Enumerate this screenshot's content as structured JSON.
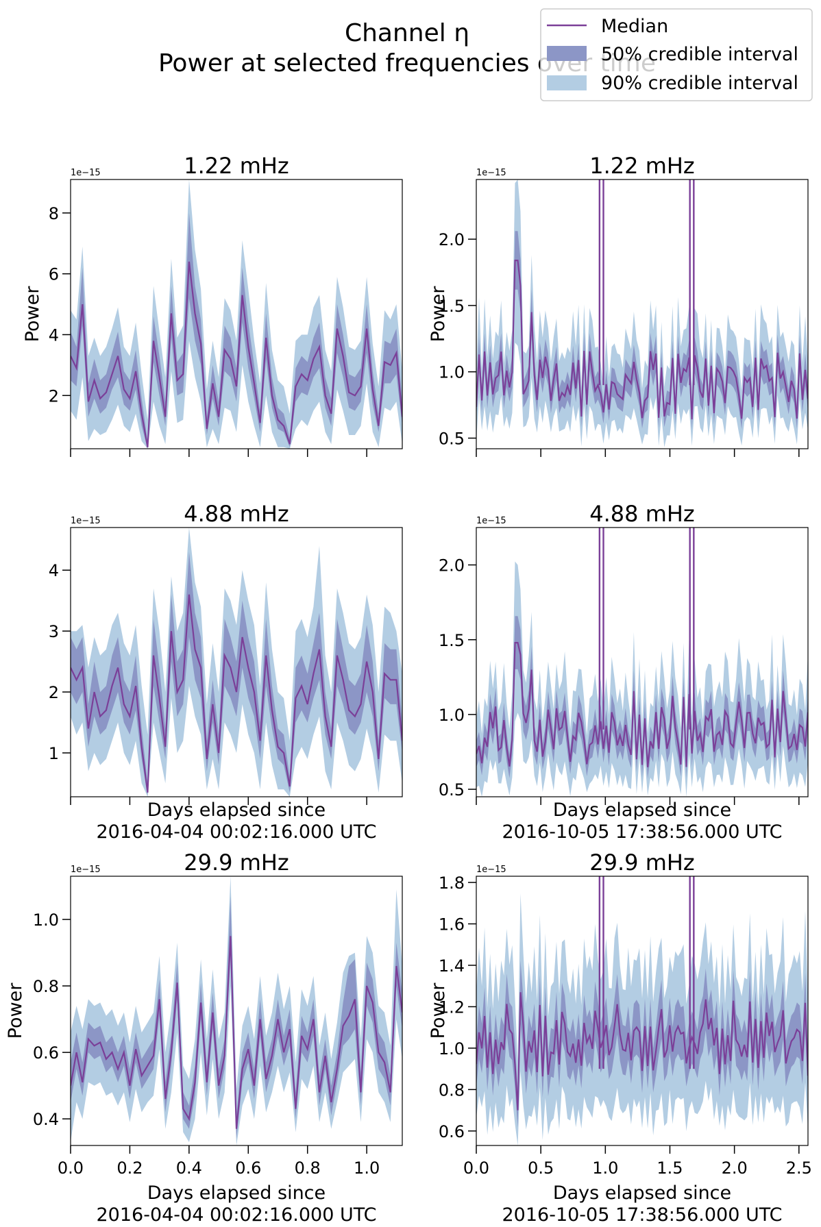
{
  "figure": {
    "title_line1": "Channel η",
    "title_line2": "Power at selected frequencies over time",
    "legend": {
      "placement": "top-right",
      "entries": [
        {
          "label": "Median",
          "kind": "line",
          "color": "#7b3f98"
        },
        {
          "label": "50% credible interval",
          "kind": "patch",
          "color": "#8c96c6"
        },
        {
          "label": "90% credible interval",
          "kind": "patch",
          "color": "#b3cde3"
        }
      ]
    }
  },
  "colors": {
    "median": "#7b3f98",
    "ci50": "#8c96c6",
    "ci90": "#b3cde3",
    "axis": "#000000"
  },
  "chart_data": [
    {
      "type": "line",
      "title": "1.22 mHz",
      "ylabel": "Power",
      "xlabel": "",
      "offset_text": "1e−15",
      "xlim": [
        0,
        1.12
      ],
      "ylim": [
        0.25,
        9.1
      ],
      "yticks": [
        2,
        4,
        6,
        8
      ],
      "ytick_labels": [
        "2",
        "4",
        "6",
        "8"
      ],
      "xticks": [
        0,
        0.2,
        0.4,
        0.6,
        0.8,
        1.0
      ],
      "xtick_labels": [],
      "x": [
        0.0,
        0.02,
        0.04,
        0.06,
        0.08,
        0.1,
        0.12,
        0.14,
        0.16,
        0.18,
        0.2,
        0.22,
        0.24,
        0.26,
        0.28,
        0.3,
        0.32,
        0.34,
        0.36,
        0.38,
        0.4,
        0.42,
        0.44,
        0.46,
        0.48,
        0.5,
        0.52,
        0.54,
        0.56,
        0.58,
        0.6,
        0.62,
        0.64,
        0.66,
        0.68,
        0.7,
        0.72,
        0.74,
        0.76,
        0.78,
        0.8,
        0.82,
        0.84,
        0.86,
        0.88,
        0.9,
        0.92,
        0.94,
        0.96,
        0.98,
        1.0,
        1.02,
        1.04,
        1.06,
        1.08,
        1.1,
        1.12
      ],
      "median": [
        3.3,
        2.9,
        5.0,
        1.8,
        2.5,
        1.9,
        2.1,
        2.7,
        3.3,
        2.2,
        1.9,
        2.8,
        1.4,
        0.3,
        3.8,
        2.6,
        1.3,
        4.7,
        2.5,
        2.7,
        6.4,
        4.7,
        3.7,
        0.9,
        2.4,
        1.3,
        3.5,
        3.2,
        2.3,
        5.3,
        3.6,
        2.4,
        1.1,
        3.9,
        2.0,
        1.2,
        1.0,
        0.4,
        2.3,
        2.7,
        2.5,
        3.2,
        3.6,
        2.0,
        1.4,
        4.2,
        3.3,
        2.1,
        2.0,
        2.3,
        4.2,
        2.2,
        1.0,
        3.1,
        3.0,
        3.4,
        1.3
      ],
      "ci50_low": [
        2.5,
        2.3,
        4.3,
        1.3,
        1.9,
        1.4,
        1.6,
        2.2,
        2.6,
        1.7,
        1.5,
        2.2,
        1.0,
        0.25,
        3.1,
        2.0,
        1.0,
        3.9,
        2.0,
        2.1,
        5.2,
        3.8,
        3.0,
        0.7,
        1.9,
        1.0,
        2.8,
        2.6,
        1.8,
        4.4,
        2.9,
        1.9,
        0.8,
        3.2,
        1.6,
        0.9,
        0.8,
        0.3,
        1.8,
        2.1,
        2.0,
        2.6,
        2.9,
        1.6,
        1.0,
        3.4,
        2.6,
        1.6,
        1.5,
        1.8,
        3.4,
        1.7,
        0.8,
        2.4,
        2.4,
        2.7,
        1.0
      ],
      "ci50_high": [
        4.1,
        3.6,
        6.2,
        2.4,
        3.2,
        2.5,
        2.7,
        3.4,
        4.1,
        2.8,
        2.5,
        3.5,
        1.9,
        0.5,
        4.6,
        3.3,
        1.8,
        5.6,
        3.1,
        3.4,
        8.0,
        5.6,
        4.5,
        1.3,
        3.0,
        1.8,
        4.3,
        3.9,
        2.9,
        6.2,
        4.4,
        3.0,
        1.5,
        4.7,
        2.6,
        1.6,
        1.4,
        0.6,
        2.9,
        3.3,
        3.1,
        3.9,
        4.4,
        2.6,
        1.9,
        5.0,
        4.0,
        2.7,
        2.6,
        2.9,
        5.0,
        2.8,
        1.4,
        3.8,
        3.7,
        4.2,
        1.8
      ],
      "ci90_low": [
        1.5,
        1.2,
        2.6,
        0.5,
        0.9,
        0.7,
        0.8,
        1.2,
        1.7,
        1.0,
        0.8,
        1.4,
        0.5,
        0.25,
        1.8,
        1.0,
        0.4,
        2.8,
        1.1,
        1.2,
        3.8,
        2.6,
        1.8,
        0.3,
        0.9,
        0.4,
        1.6,
        1.5,
        0.8,
        3.0,
        1.8,
        1.0,
        0.3,
        2.0,
        0.8,
        0.3,
        0.3,
        0.25,
        0.9,
        1.2,
        1.0,
        1.5,
        1.8,
        0.8,
        0.4,
        2.2,
        1.5,
        0.7,
        0.7,
        1.0,
        2.4,
        0.8,
        0.3,
        1.6,
        1.5,
        1.8,
        0.4
      ],
      "ci90_high": [
        4.8,
        4.5,
        6.9,
        3.3,
        3.9,
        3.3,
        3.6,
        4.2,
        4.9,
        3.6,
        3.3,
        4.4,
        2.7,
        1.2,
        5.6,
        4.1,
        2.6,
        6.5,
        3.9,
        4.3,
        9.1,
        6.8,
        5.5,
        2.2,
        3.8,
        2.6,
        5.2,
        4.8,
        3.8,
        7.1,
        5.5,
        3.8,
        2.4,
        5.7,
        3.5,
        2.5,
        2.3,
        1.4,
        3.8,
        4.0,
        4.0,
        4.9,
        5.3,
        3.5,
        2.8,
        5.9,
        4.9,
        3.6,
        3.5,
        3.8,
        5.9,
        3.7,
        2.3,
        4.8,
        4.5,
        5.0,
        2.8
      ]
    },
    {
      "type": "line",
      "title": "1.22 mHz",
      "ylabel": "Power",
      "xlabel": "",
      "offset_text": "1e−15",
      "xlim": [
        0,
        2.57
      ],
      "ylim": [
        0.42,
        2.45
      ],
      "yticks": [
        0.5,
        1.0,
        1.5,
        2.0
      ],
      "ytick_labels": [
        "0.5",
        "1.0",
        "1.5",
        "2.0"
      ],
      "xticks": [
        0,
        0.5,
        1.0,
        1.5,
        2.0,
        2.5
      ],
      "xtick_labels": [],
      "base_seed": 7,
      "base_level": 0.9,
      "noise": 0.2,
      "peaks": [
        {
          "x": 0.31,
          "v": 1.84
        },
        {
          "x": 0.35,
          "v": 1.65
        },
        {
          "x": 0.42,
          "v": 1.45
        }
      ],
      "spikes": [
        0.955,
        0.985,
        1.655,
        1.685
      ]
    },
    {
      "type": "line",
      "title": "4.88 mHz",
      "ylabel": "",
      "xlabel": "Days elapsed since\n2016-04-04 00:02:16.000 UTC",
      "offset_text": "1e−15",
      "xlim": [
        0,
        1.12
      ],
      "ylim": [
        0.28,
        4.7
      ],
      "yticks": [
        1,
        2,
        3,
        4
      ],
      "ytick_labels": [
        "1",
        "2",
        "3",
        "4"
      ],
      "xticks": [
        0,
        0.2,
        0.4,
        0.6,
        0.8,
        1.0
      ],
      "xtick_labels": [],
      "x": [
        0.0,
        0.02,
        0.04,
        0.06,
        0.08,
        0.1,
        0.12,
        0.14,
        0.16,
        0.18,
        0.2,
        0.22,
        0.24,
        0.26,
        0.28,
        0.3,
        0.32,
        0.34,
        0.36,
        0.38,
        0.4,
        0.42,
        0.44,
        0.46,
        0.48,
        0.5,
        0.52,
        0.54,
        0.56,
        0.58,
        0.6,
        0.62,
        0.64,
        0.66,
        0.68,
        0.7,
        0.72,
        0.74,
        0.76,
        0.78,
        0.8,
        0.82,
        0.84,
        0.86,
        0.88,
        0.9,
        0.92,
        0.94,
        0.96,
        0.98,
        1.0,
        1.02,
        1.04,
        1.06,
        1.08,
        1.1,
        1.12
      ],
      "median": [
        2.4,
        2.2,
        2.4,
        1.4,
        2.0,
        1.6,
        1.7,
        2.1,
        2.4,
        1.8,
        1.6,
        2.1,
        1.1,
        0.35,
        2.6,
        1.9,
        1.1,
        3.0,
        2.0,
        2.2,
        3.6,
        2.7,
        2.4,
        0.9,
        1.8,
        1.0,
        2.6,
        2.4,
        2.0,
        2.9,
        2.4,
        2.0,
        1.2,
        2.6,
        1.7,
        1.1,
        1.0,
        0.45,
        1.9,
        2.1,
        1.8,
        2.3,
        2.7,
        1.6,
        1.1,
        2.6,
        2.2,
        1.7,
        1.6,
        1.8,
        2.5,
        2.0,
        0.9,
        2.3,
        2.2,
        2.2,
        1.2
      ],
      "ci50_low": [
        2.0,
        1.8,
        2.0,
        1.1,
        1.6,
        1.3,
        1.4,
        1.7,
        2.0,
        1.5,
        1.3,
        1.7,
        0.9,
        0.3,
        2.1,
        1.5,
        0.9,
        2.5,
        1.6,
        1.8,
        2.9,
        2.2,
        1.9,
        0.7,
        1.5,
        0.8,
        2.1,
        1.9,
        1.6,
        2.4,
        1.9,
        1.6,
        0.9,
        2.1,
        1.4,
        0.9,
        0.8,
        0.35,
        1.5,
        1.7,
        1.5,
        1.9,
        2.2,
        1.3,
        0.9,
        2.1,
        1.8,
        1.4,
        1.3,
        1.5,
        2.0,
        1.6,
        0.7,
        1.9,
        1.8,
        1.8,
        1.0
      ],
      "ci50_high": [
        2.9,
        2.7,
        2.9,
        1.8,
        2.5,
        2.0,
        2.1,
        2.6,
        2.9,
        2.2,
        2.0,
        2.6,
        1.4,
        0.5,
        3.2,
        2.4,
        1.4,
        3.6,
        2.5,
        2.7,
        4.3,
        3.3,
        2.9,
        1.2,
        2.2,
        1.3,
        3.2,
        2.9,
        2.5,
        3.5,
        2.9,
        2.5,
        1.5,
        3.2,
        2.1,
        1.4,
        1.3,
        0.6,
        2.4,
        2.6,
        2.3,
        2.8,
        3.3,
        2.0,
        1.4,
        3.2,
        2.7,
        2.2,
        2.1,
        2.3,
        3.1,
        2.5,
        1.2,
        2.8,
        2.7,
        2.7,
        1.5
      ],
      "ci90_low": [
        1.6,
        1.3,
        1.5,
        0.7,
        1.0,
        0.8,
        0.9,
        1.2,
        1.5,
        1.0,
        0.8,
        1.2,
        0.5,
        0.28,
        1.5,
        1.0,
        0.5,
        1.9,
        1.0,
        1.2,
        2.1,
        1.6,
        1.3,
        0.4,
        0.9,
        0.4,
        1.5,
        1.3,
        1.0,
        1.8,
        1.3,
        1.0,
        0.4,
        1.5,
        0.8,
        0.4,
        0.4,
        0.28,
        0.9,
        1.1,
        0.9,
        1.3,
        1.6,
        0.7,
        0.4,
        1.5,
        1.2,
        0.8,
        0.7,
        0.9,
        1.4,
        1.0,
        0.35,
        1.3,
        1.2,
        1.2,
        0.5
      ],
      "ci90_high": [
        3.0,
        3.0,
        3.1,
        2.4,
        2.9,
        2.6,
        2.7,
        3.1,
        3.3,
        2.8,
        2.6,
        3.1,
        2.1,
        1.3,
        3.7,
        3.0,
        2.0,
        3.9,
        3.0,
        3.3,
        4.7,
        3.8,
        3.4,
        1.8,
        2.8,
        2.0,
        3.7,
        3.5,
        3.1,
        4.0,
        3.5,
        3.1,
        2.1,
        3.8,
        2.7,
        2.0,
        1.9,
        1.2,
        3.0,
        3.2,
        2.9,
        3.4,
        4.4,
        2.6,
        2.0,
        3.7,
        3.3,
        2.8,
        2.7,
        2.9,
        3.6,
        3.1,
        2.0,
        3.4,
        3.3,
        3.0,
        2.3
      ]
    },
    {
      "type": "line",
      "title": "4.88 mHz",
      "ylabel": "",
      "xlabel": "Days elapsed since\n2016-10-05 17:38:56.000 UTC",
      "offset_text": "1e−15",
      "xlim": [
        0,
        2.57
      ],
      "ylim": [
        0.45,
        2.25
      ],
      "yticks": [
        0.5,
        1.0,
        1.5,
        2.0
      ],
      "ytick_labels": [
        "0.5",
        "1.0",
        "1.5",
        "2.0"
      ],
      "xticks": [
        0,
        0.5,
        1.0,
        1.5,
        2.0,
        2.5
      ],
      "xtick_labels": [],
      "base_seed": 11,
      "base_level": 0.9,
      "noise": 0.2,
      "peaks": [
        {
          "x": 0.31,
          "v": 1.48
        },
        {
          "x": 0.35,
          "v": 1.4
        },
        {
          "x": 0.42,
          "v": 1.3
        }
      ],
      "spikes": [
        0.955,
        0.985,
        1.655,
        1.685
      ]
    },
    {
      "type": "line",
      "title": "29.9 mHz",
      "ylabel": "Power",
      "xlabel": "Days elapsed since\n2016-04-04 00:02:16.000 UTC",
      "offset_text": "1e−15",
      "xlim": [
        0,
        1.12
      ],
      "ylim": [
        0.32,
        1.13
      ],
      "yticks": [
        0.4,
        0.6,
        0.8,
        1.0
      ],
      "ytick_labels": [
        "0.4",
        "0.6",
        "0.8",
        "1.0"
      ],
      "xticks": [
        0,
        0.2,
        0.4,
        0.6,
        0.8,
        1.0
      ],
      "xtick_labels": [
        "0.0",
        "0.2",
        "0.4",
        "0.6",
        "0.8",
        "1.0"
      ],
      "x": [
        0.0,
        0.02,
        0.04,
        0.06,
        0.08,
        0.1,
        0.12,
        0.14,
        0.16,
        0.18,
        0.2,
        0.22,
        0.24,
        0.26,
        0.28,
        0.3,
        0.32,
        0.34,
        0.36,
        0.38,
        0.4,
        0.42,
        0.44,
        0.46,
        0.48,
        0.5,
        0.52,
        0.54,
        0.56,
        0.58,
        0.6,
        0.62,
        0.64,
        0.66,
        0.68,
        0.7,
        0.72,
        0.74,
        0.76,
        0.78,
        0.8,
        0.82,
        0.84,
        0.86,
        0.88,
        0.9,
        0.92,
        0.94,
        0.96,
        0.98,
        1.0,
        1.02,
        1.04,
        1.06,
        1.08,
        1.1,
        1.12
      ],
      "median": [
        0.5,
        0.6,
        0.51,
        0.64,
        0.62,
        0.63,
        0.58,
        0.6,
        0.55,
        0.6,
        0.5,
        0.61,
        0.53,
        0.56,
        0.59,
        0.76,
        0.46,
        0.6,
        0.81,
        0.43,
        0.4,
        0.51,
        0.75,
        0.51,
        0.72,
        0.5,
        0.59,
        0.95,
        0.37,
        0.55,
        0.61,
        0.5,
        0.7,
        0.52,
        0.59,
        0.7,
        0.6,
        0.67,
        0.43,
        0.65,
        0.61,
        0.7,
        0.48,
        0.59,
        0.45,
        0.55,
        0.68,
        0.71,
        0.76,
        0.48,
        0.8,
        0.75,
        0.6,
        0.57,
        0.48,
        0.86,
        0.72
      ],
      "ci50_low": [
        0.45,
        0.55,
        0.47,
        0.6,
        0.58,
        0.59,
        0.54,
        0.56,
        0.51,
        0.56,
        0.46,
        0.57,
        0.49,
        0.52,
        0.55,
        0.71,
        0.42,
        0.56,
        0.76,
        0.4,
        0.37,
        0.47,
        0.7,
        0.47,
        0.67,
        0.46,
        0.55,
        0.89,
        0.34,
        0.51,
        0.57,
        0.46,
        0.65,
        0.48,
        0.55,
        0.65,
        0.56,
        0.62,
        0.4,
        0.6,
        0.57,
        0.65,
        0.44,
        0.55,
        0.41,
        0.51,
        0.62,
        0.64,
        0.67,
        0.44,
        0.74,
        0.69,
        0.55,
        0.52,
        0.44,
        0.8,
        0.67
      ],
      "ci50_high": [
        0.57,
        0.66,
        0.57,
        0.69,
        0.67,
        0.68,
        0.63,
        0.65,
        0.6,
        0.65,
        0.55,
        0.66,
        0.58,
        0.61,
        0.64,
        0.82,
        0.51,
        0.65,
        0.87,
        0.48,
        0.44,
        0.56,
        0.81,
        0.56,
        0.78,
        0.55,
        0.64,
        1.07,
        0.41,
        0.6,
        0.66,
        0.55,
        0.76,
        0.57,
        0.64,
        0.76,
        0.65,
        0.73,
        0.48,
        0.71,
        0.66,
        0.76,
        0.53,
        0.64,
        0.5,
        0.6,
        0.75,
        0.86,
        0.88,
        0.54,
        0.87,
        0.82,
        0.66,
        0.63,
        0.53,
        0.93,
        0.78
      ],
      "ci90_low": [
        0.33,
        0.45,
        0.4,
        0.51,
        0.5,
        0.51,
        0.47,
        0.48,
        0.44,
        0.48,
        0.39,
        0.49,
        0.42,
        0.45,
        0.47,
        0.61,
        0.37,
        0.48,
        0.66,
        0.36,
        0.33,
        0.4,
        0.6,
        0.41,
        0.58,
        0.4,
        0.48,
        0.8,
        0.32,
        0.44,
        0.49,
        0.4,
        0.56,
        0.42,
        0.48,
        0.56,
        0.48,
        0.54,
        0.36,
        0.52,
        0.49,
        0.56,
        0.39,
        0.48,
        0.37,
        0.45,
        0.54,
        0.56,
        0.58,
        0.39,
        0.64,
        0.6,
        0.48,
        0.45,
        0.39,
        0.7,
        0.58
      ],
      "ci90_high": [
        0.66,
        0.74,
        0.67,
        0.76,
        0.74,
        0.75,
        0.71,
        0.73,
        0.68,
        0.72,
        0.63,
        0.74,
        0.66,
        0.69,
        0.72,
        0.89,
        0.6,
        0.73,
        0.93,
        0.56,
        0.52,
        0.64,
        0.88,
        0.64,
        0.85,
        0.64,
        0.72,
        1.13,
        0.49,
        0.68,
        0.74,
        0.64,
        0.83,
        0.65,
        0.72,
        0.84,
        0.73,
        0.8,
        0.57,
        0.79,
        0.74,
        0.83,
        0.62,
        0.72,
        0.58,
        0.69,
        0.84,
        0.89,
        0.9,
        0.64,
        0.95,
        0.9,
        0.74,
        0.72,
        0.62,
        1.09,
        0.86
      ]
    },
    {
      "type": "line",
      "title": "29.9 mHz",
      "ylabel": "Power",
      "xlabel": "Days elapsed since\n2016-10-05 17:38:56.000 UTC",
      "offset_text": "1e−15",
      "xlim": [
        0,
        2.57
      ],
      "ylim": [
        0.53,
        1.83
      ],
      "yticks": [
        0.6,
        0.8,
        1.0,
        1.2,
        1.4,
        1.6,
        1.8
      ],
      "ytick_labels": [
        "0.6",
        "0.8",
        "1.0",
        "1.2",
        "1.4",
        "1.6",
        "1.8"
      ],
      "xticks": [
        0,
        0.5,
        1.0,
        1.5,
        2.0,
        2.5
      ],
      "xtick_labels": [
        "0.0",
        "0.5",
        "1.0",
        "1.5",
        "2.0",
        "2.5"
      ],
      "base_seed": 19,
      "base_level": 1.05,
      "noise": 0.13,
      "peaks": [
        {
          "x": 0.35,
          "v": 1.27
        },
        {
          "x": 0.32,
          "v": 0.7
        }
      ],
      "spikes": [
        0.955,
        0.985,
        1.655,
        1.685
      ]
    }
  ]
}
